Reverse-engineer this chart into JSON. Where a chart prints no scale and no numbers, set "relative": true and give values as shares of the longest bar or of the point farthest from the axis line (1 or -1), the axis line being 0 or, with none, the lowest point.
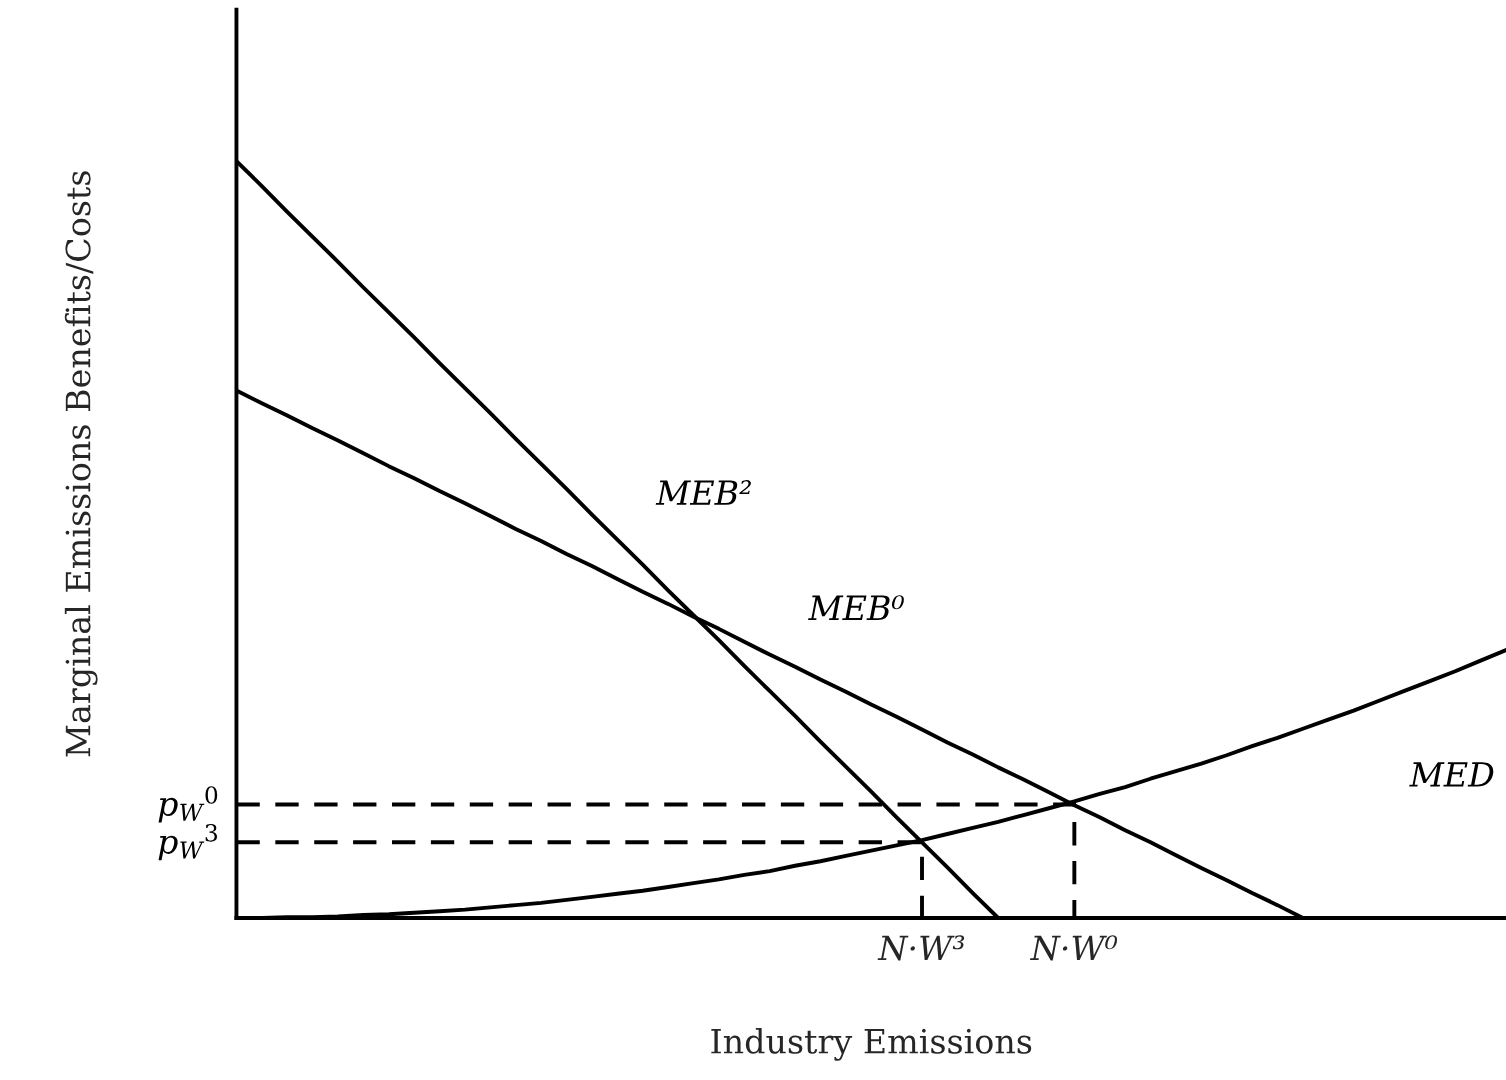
{
  "chart_data": {
    "type": "line",
    "relative": true,
    "xlabel": "Industry Emissions",
    "ylabel": "Marginal Emissions Benefits/Costs",
    "legend": false,
    "grid": false,
    "marker": "none",
    "categories": [
      null,
      null,
      null,
      null,
      null,
      null,
      null,
      null,
      null,
      null,
      null,
      null,
      null,
      null,
      null,
      null,
      null,
      null,
      null,
      null,
      null,
      null,
      null,
      null,
      null,
      null,
      null,
      "N·W³",
      null,
      null,
      null,
      null,
      null,
      "N·W⁰",
      null,
      null,
      null,
      null,
      null,
      null,
      null,
      null,
      null,
      null,
      null,
      null,
      null,
      null,
      null,
      null,
      null
    ],
    "series": [
      {
        "name": "MEB²",
        "color": "#000000",
        "line_style": "solid",
        "values": [
          1,
          0.967,
          0.933,
          0.9,
          0.867,
          0.833,
          0.8,
          0.767,
          0.733,
          0.7,
          0.667,
          0.633,
          0.6,
          0.567,
          0.533,
          0.5,
          0.467,
          0.433,
          0.4,
          0.367,
          0.333,
          0.3,
          0.267,
          0.233,
          0.2,
          0.167,
          0.133,
          0.1,
          0.067,
          0.033,
          0,
          null,
          null,
          null,
          null,
          null,
          null,
          null,
          null,
          null,
          null,
          null,
          null,
          null,
          null,
          null,
          null,
          null,
          null,
          null,
          null
        ]
      },
      {
        "name": "MEB⁰",
        "color": "#000000",
        "line_style": "solid",
        "values": [
          0.697,
          0.68,
          0.664,
          0.647,
          0.631,
          0.614,
          0.597,
          0.581,
          0.564,
          0.548,
          0.531,
          0.514,
          0.498,
          0.481,
          0.465,
          0.448,
          0.431,
          0.415,
          0.398,
          0.382,
          0.365,
          0.348,
          0.332,
          0.315,
          0.299,
          0.282,
          0.266,
          0.249,
          0.232,
          0.216,
          0.199,
          0.183,
          0.166,
          0.149,
          0.133,
          0.116,
          0.1,
          0.083,
          0.066,
          0.05,
          0.033,
          0.017,
          0,
          null,
          null,
          null,
          null,
          null,
          null,
          null,
          null
        ]
      },
      {
        "name": "MED",
        "color": "#000000",
        "line_style": "solid",
        "values": [
          0,
          0,
          0.001,
          0.001,
          0.002,
          0.004,
          0.005,
          0.007,
          0.009,
          0.011,
          0.014,
          0.017,
          0.02,
          0.024,
          0.028,
          0.032,
          0.036,
          0.041,
          0.046,
          0.051,
          0.057,
          0.062,
          0.069,
          0.075,
          0.082,
          0.089,
          0.096,
          0.103,
          0.111,
          0.119,
          0.127,
          0.136,
          0.145,
          0.154,
          0.164,
          0.173,
          0.184,
          0.194,
          0.204,
          0.215,
          0.227,
          0.238,
          0.25,
          0.262,
          0.274,
          0.287,
          0.3,
          0.313,
          0.326,
          0.34,
          0.354
        ]
      },
      {
        "type": "step",
        "name": "p$_{W}$$^{0}$",
        "color": "#000000",
        "line_style": "dashed",
        "values": [
          0.15,
          0.15,
          0.15,
          0.15,
          0.15,
          0.15,
          0.15,
          0.15,
          0.15,
          0.15,
          0.15,
          0.15,
          0.15,
          0.15,
          0.15,
          0.15,
          0.15,
          0.15,
          0.15,
          0.15,
          0.15,
          0.15,
          0.15,
          0.15,
          0.15,
          0.15,
          0.15,
          0.15,
          0.15,
          0.15,
          0.15,
          0.15,
          0.15,
          0.15,
          0,
          null,
          null,
          null,
          null,
          null,
          null,
          null,
          null,
          null,
          null,
          null,
          null,
          null,
          null,
          null,
          null
        ]
      },
      {
        "type": "step",
        "name": "p$_{W}$$^{3}$",
        "color": "#000000",
        "line_style": "dashed",
        "values": [
          0.1,
          0.1,
          0.1,
          0.1,
          0.1,
          0.1,
          0.1,
          0.1,
          0.1,
          0.1,
          0.1,
          0.1,
          0.1,
          0.1,
          0.1,
          0.1,
          0.1,
          0.1,
          0.1,
          0.1,
          0.1,
          0.1,
          0.1,
          0.1,
          0.1,
          0.1,
          0.1,
          0.1,
          0,
          null,
          null,
          null,
          null,
          null,
          null,
          null,
          null,
          null,
          null,
          null,
          null,
          null,
          null,
          null,
          null,
          null,
          null,
          null,
          null,
          null,
          null
        ]
      }
    ]
  }
}
